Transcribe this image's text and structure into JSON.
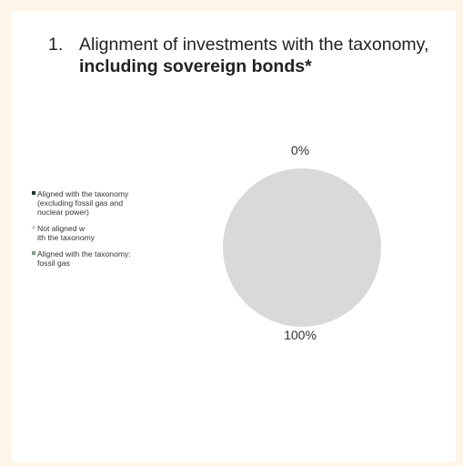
{
  "title": {
    "number": "1.",
    "text_plain": "Alignment of investments with the taxonomy, ",
    "text_bold": "including sovereign bonds*"
  },
  "chart_data": {
    "type": "pie",
    "title": "",
    "slices": [
      {
        "name": "Aligned with the taxonomy (excluding fossil gas and nuclear power)",
        "value": 0,
        "color": "#1e3a2a"
      },
      {
        "name": "Not aligned with the taxonomy",
        "value": 100,
        "color": "#d9d9d9"
      },
      {
        "name": "Aligned with the taxonomy: fossil gas",
        "value": 0,
        "color": "#7aa57e"
      }
    ],
    "data_labels": [
      "0%",
      "100%"
    ],
    "legend": {
      "position": "left",
      "items": [
        {
          "label": "Aligned with the taxonomy\n(excluding fossil gas and\nnuclear power)",
          "color": "#1e3a2a"
        },
        {
          "label": "Not aligned w\nith the taxonomy",
          "color": "#d9d9d9"
        },
        {
          "label": "Aligned with the taxonomy:\nfossil gas",
          "color": "#7aa57e"
        }
      ]
    }
  }
}
